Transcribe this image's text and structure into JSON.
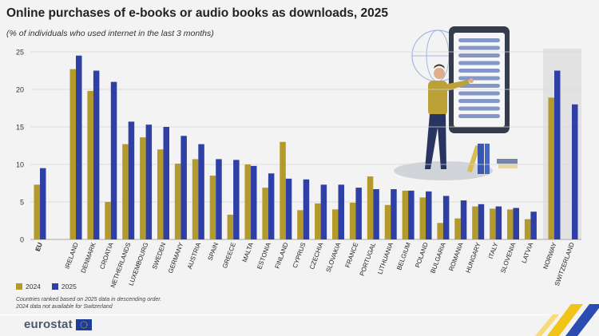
{
  "title": "Online purchases of e-books or audio books as downloads, 2025",
  "subtitle": "(% of individuals who used internet in the last 3 months)",
  "legend": {
    "series_2024": "2024",
    "series_2025": "2025"
  },
  "notes": {
    "line1": "Countries ranked based on 2025 data in descending order.",
    "line2": "2024 data not available for Switzerland"
  },
  "logo": {
    "text": "eurostat"
  },
  "colors": {
    "s2024": "#b39a2a",
    "s2025": "#2e3fa6",
    "highlight": "#e2e2e2",
    "gridline": "#d6d6d6"
  },
  "chart_data": {
    "type": "bar",
    "title": "Online purchases of e-books or audio books as downloads, 2025",
    "subtitle": "(% of individuals who used internet in the last 3 months)",
    "ylim": [
      0,
      25
    ],
    "yticks": [
      0,
      5,
      10,
      15,
      20,
      25
    ],
    "grid": true,
    "legend_position": "bottom-left",
    "categories": [
      "EU",
      "IRELAND",
      "DENMARK",
      "CROATIA",
      "NETHERLANDS",
      "LUXEMBOURG",
      "SWEDEN",
      "GERMANY",
      "AUSTRIA",
      "SPAIN",
      "GREECE",
      "MALTA",
      "ESTONIA",
      "FINLAND",
      "CYPRUS",
      "CZECHIA",
      "SLOVAKIA",
      "FRANCE",
      "PORTUGAL",
      "LITHUANIA",
      "BELGIUM",
      "POLAND",
      "BULGARIA",
      "ROMANIA",
      "HUNGARY",
      "ITALY",
      "SLOVENIA",
      "LATVIA",
      "NORWAY",
      "SWITZERLAND"
    ],
    "series": [
      {
        "name": "2024",
        "values": [
          7.3,
          22.7,
          19.8,
          5.0,
          12.7,
          13.6,
          12.0,
          10.1,
          10.7,
          8.5,
          3.3,
          10.0,
          6.9,
          13.0,
          3.9,
          4.8,
          4.0,
          4.9,
          8.4,
          4.6,
          6.5,
          5.6,
          2.2,
          2.8,
          4.4,
          4.1,
          4.0,
          2.7,
          18.9,
          null
        ]
      },
      {
        "name": "2025",
        "values": [
          9.5,
          24.5,
          22.5,
          21.0,
          15.7,
          15.3,
          15.0,
          13.8,
          12.7,
          10.7,
          10.6,
          9.8,
          8.8,
          8.1,
          8.0,
          7.3,
          7.3,
          6.9,
          6.7,
          6.7,
          6.5,
          6.4,
          5.8,
          5.2,
          4.7,
          4.4,
          4.2,
          3.7,
          22.5,
          18.0
        ]
      }
    ]
  }
}
